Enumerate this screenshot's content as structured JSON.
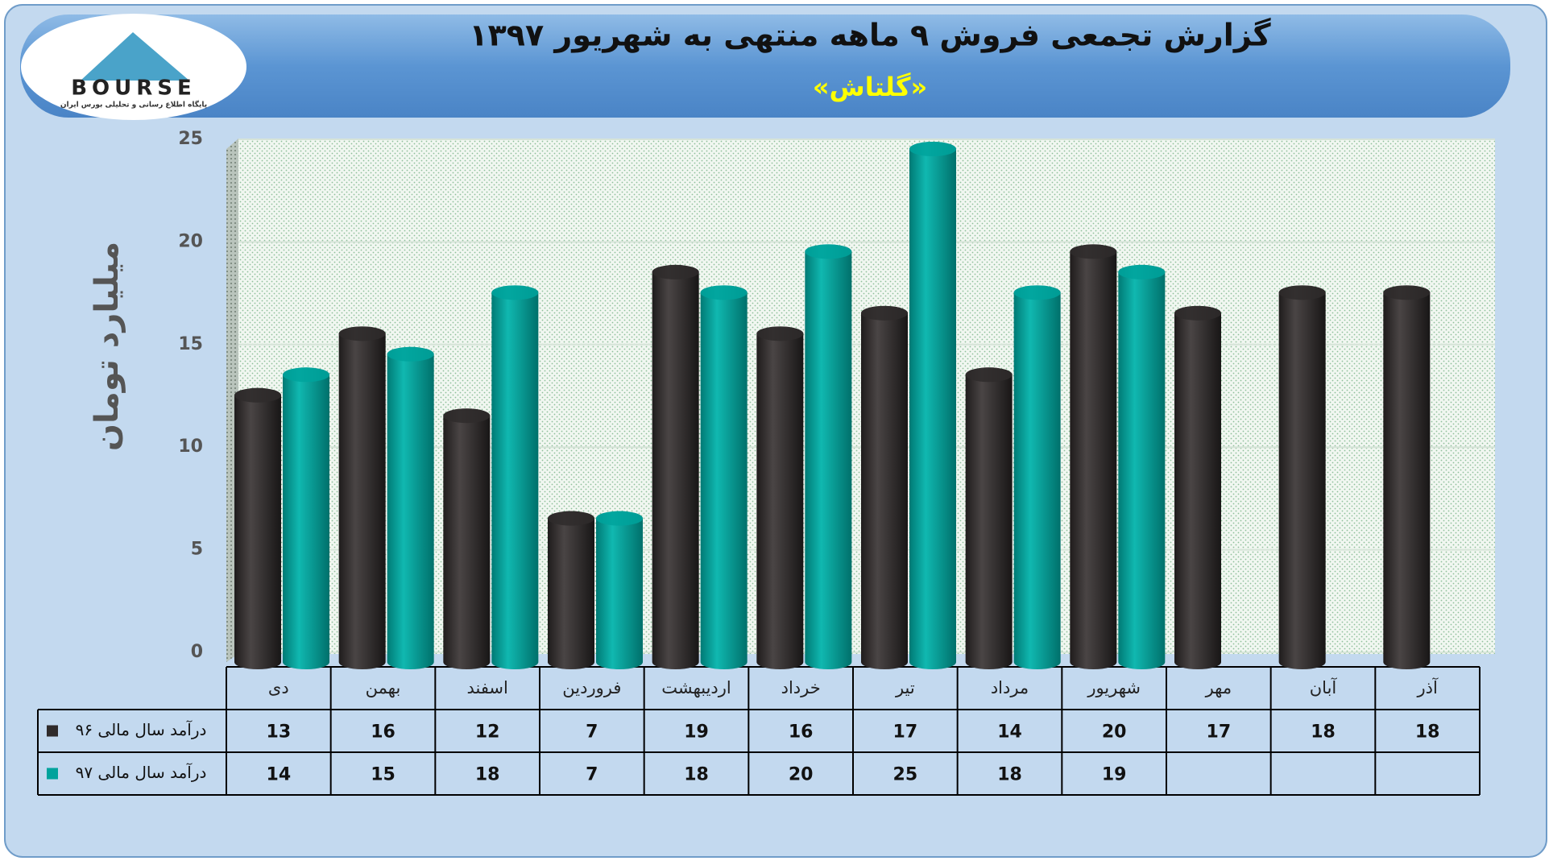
{
  "logo": {
    "name": "BOURSE",
    "tagline": "پایگاه اطلاع رسانی و تحلیلی بورس ایران"
  },
  "chart_data": {
    "type": "bar",
    "title": "گزارش تجمعی فروش ۹ ماهه منتهی به شهریور ۱۳۹۷",
    "subtitle": "«گلتاش»",
    "y_label": "میلیارد تومان",
    "categories": [
      "دی",
      "بهمن",
      "اسفند",
      "فروردین",
      "اردیبهشت",
      "خرداد",
      "تیر",
      "مرداد",
      "شهریور",
      "مهر",
      "آبان",
      "آذر"
    ],
    "series": [
      {
        "name": "درآمد سال مالی ۹۶",
        "color": "#2f2b2b",
        "values": [
          13,
          16,
          12,
          7,
          19,
          16,
          17,
          14,
          20,
          17,
          18,
          18
        ]
      },
      {
        "name": "درآمد سال مالی ۹۷",
        "color": "#00a39c",
        "values": [
          14,
          15,
          18,
          7,
          18,
          20,
          25,
          18,
          19,
          null,
          null,
          null
        ]
      }
    ],
    "ylim": [
      0,
      25
    ],
    "yticks": [
      0,
      5,
      10,
      15,
      20,
      25
    ],
    "grid": true
  }
}
